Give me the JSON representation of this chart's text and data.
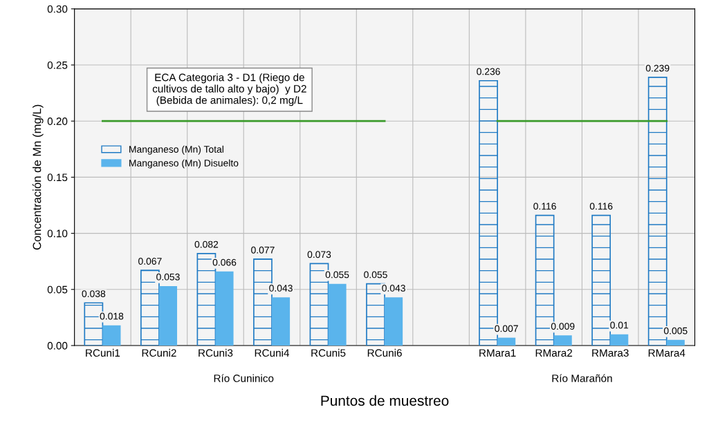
{
  "chart_data": {
    "type": "bar",
    "xlabel": "Puntos de muestreo",
    "ylabel": "Concentración de Mn (mg/L)",
    "categories": [
      "RCuni1",
      "RCuni2",
      "RCuni3",
      "RCuni4",
      "RCuni5",
      "RCuni6",
      null,
      "RMara1",
      "RMara2",
      "RMara3",
      "RMara4"
    ],
    "series": [
      {
        "name": "Manganeso (Mn) Total",
        "color": "#1f7ac4",
        "values": [
          0.038,
          0.067,
          0.082,
          0.077,
          0.073,
          0.055,
          null,
          0.236,
          0.116,
          0.116,
          0.239
        ],
        "value_labels": [
          "0.038",
          "0.067",
          "0.082",
          "0.077",
          "0.073",
          "0.055",
          null,
          "0.236",
          "0.116",
          "0.116",
          "0.239"
        ]
      },
      {
        "name": "Manganeso (Mn) Disuelto",
        "color": "#5ab4ec",
        "values": [
          0.018,
          0.053,
          0.066,
          0.043,
          0.055,
          0.043,
          null,
          0.007,
          0.009,
          0.01,
          0.005
        ],
        "value_labels": [
          "0.018",
          "0.053",
          "0.066",
          "0.043",
          "0.055",
          "0.043",
          null,
          "0.007",
          "0.009",
          "0.01",
          "0.005"
        ]
      },
      {
        "type": "line",
        "color": "#3a9a2a",
        "values": [
          0.2,
          0.2,
          0.2,
          0.2,
          0.2,
          0.2,
          null,
          0.2,
          0.2,
          0.2,
          0.2
        ]
      }
    ],
    "ylim": [
      0,
      0.3
    ],
    "yticks": [
      {
        "value": 0,
        "label": "0.00"
      },
      {
        "value": 0.05,
        "label": "0.05"
      },
      {
        "value": 0.1,
        "label": "0.10"
      },
      {
        "value": 0.15,
        "label": "0.15"
      },
      {
        "value": 0.2,
        "label": "0.20"
      },
      {
        "value": 0.25,
        "label": "0.25"
      },
      {
        "value": 0.3,
        "label": "0.30"
      }
    ],
    "grid": true,
    "legend": "left",
    "annotations": [
      "ECA Categoria 3 - D1 (Riego de\ncultivos de tallo alto y bajo)  y D2\n(Bebida de animales): 0,2 mg/L",
      "Río Cuninico",
      "Río Marañón"
    ]
  }
}
